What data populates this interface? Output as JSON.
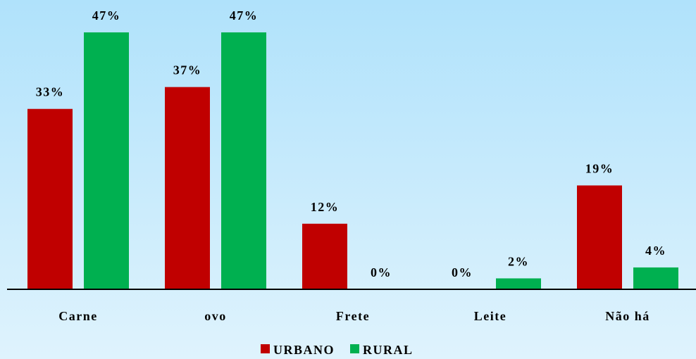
{
  "chart_data": {
    "type": "bar",
    "categories": [
      "Carne",
      "ovo",
      "Frete",
      "Leite",
      "Não há"
    ],
    "series": [
      {
        "name": "URBANO",
        "color": "#c00000",
        "values": [
          33,
          37,
          12,
          0,
          19
        ],
        "value_labels": [
          "33%",
          "37%",
          "12%",
          "0%",
          "19%"
        ]
      },
      {
        "name": "RURAL",
        "color": "#00b050",
        "values": [
          47,
          47,
          0,
          2,
          4
        ],
        "value_labels": [
          "47%",
          "47%",
          "0%",
          "2%",
          "4%"
        ]
      }
    ],
    "legend": "bottom"
  }
}
